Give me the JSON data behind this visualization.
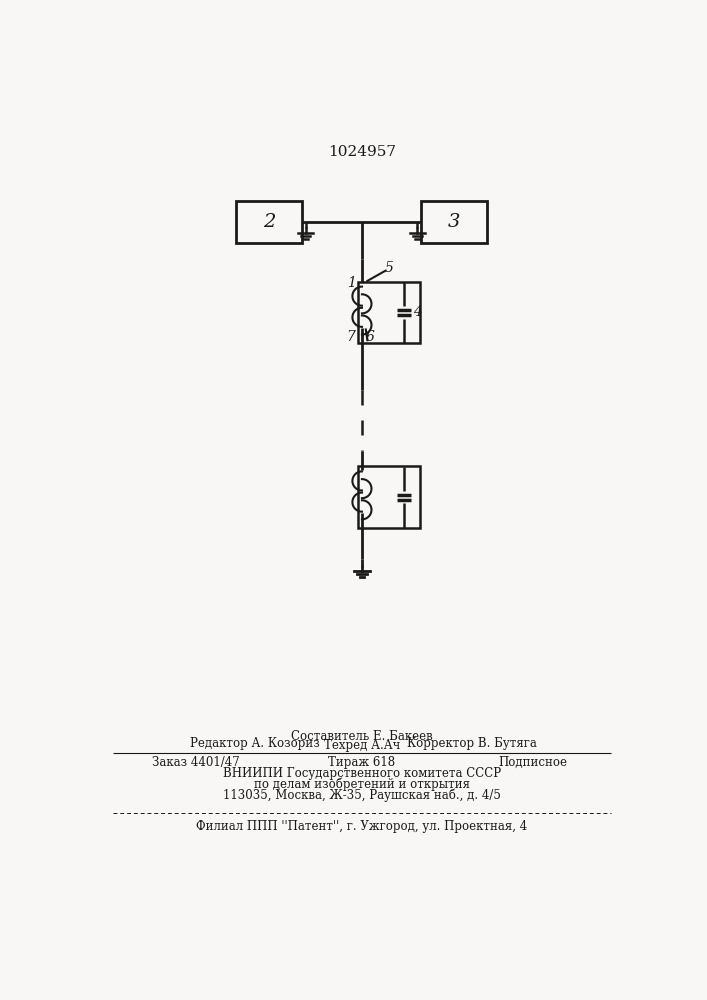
{
  "title": "1024957",
  "bg_color": "#ffffff",
  "paper_color": "#f8f7f5",
  "line_color": "#1a1a1a",
  "box2_label": "2",
  "box3_label": "3",
  "label1": "1",
  "label4": "4",
  "label5": "5",
  "label6": "6",
  "label7": "7",
  "footer_line1_left": "Редактор А. Козориз",
  "footer_line1_center_top": "Составитель Е. Бакеев",
  "footer_line1_center_bot": "Техред А.Ач",
  "footer_line1_right": "Корректор В. Бутяга",
  "footer_line2_left": "Заказ 4401/47",
  "footer_line2_center": "Тираж 618",
  "footer_line2_right": "Подписное",
  "footer_line3": "ВНИИПИ Государственного комитета СССР",
  "footer_line4": "по делам изобретений и открытия",
  "footer_line5": "113035, Москва, Ж-35, Раушская наб., д. 4/5",
  "footer_line6": "Филиал ППП ''Патент'', г. Ужгород, ул. Проектная, 4"
}
